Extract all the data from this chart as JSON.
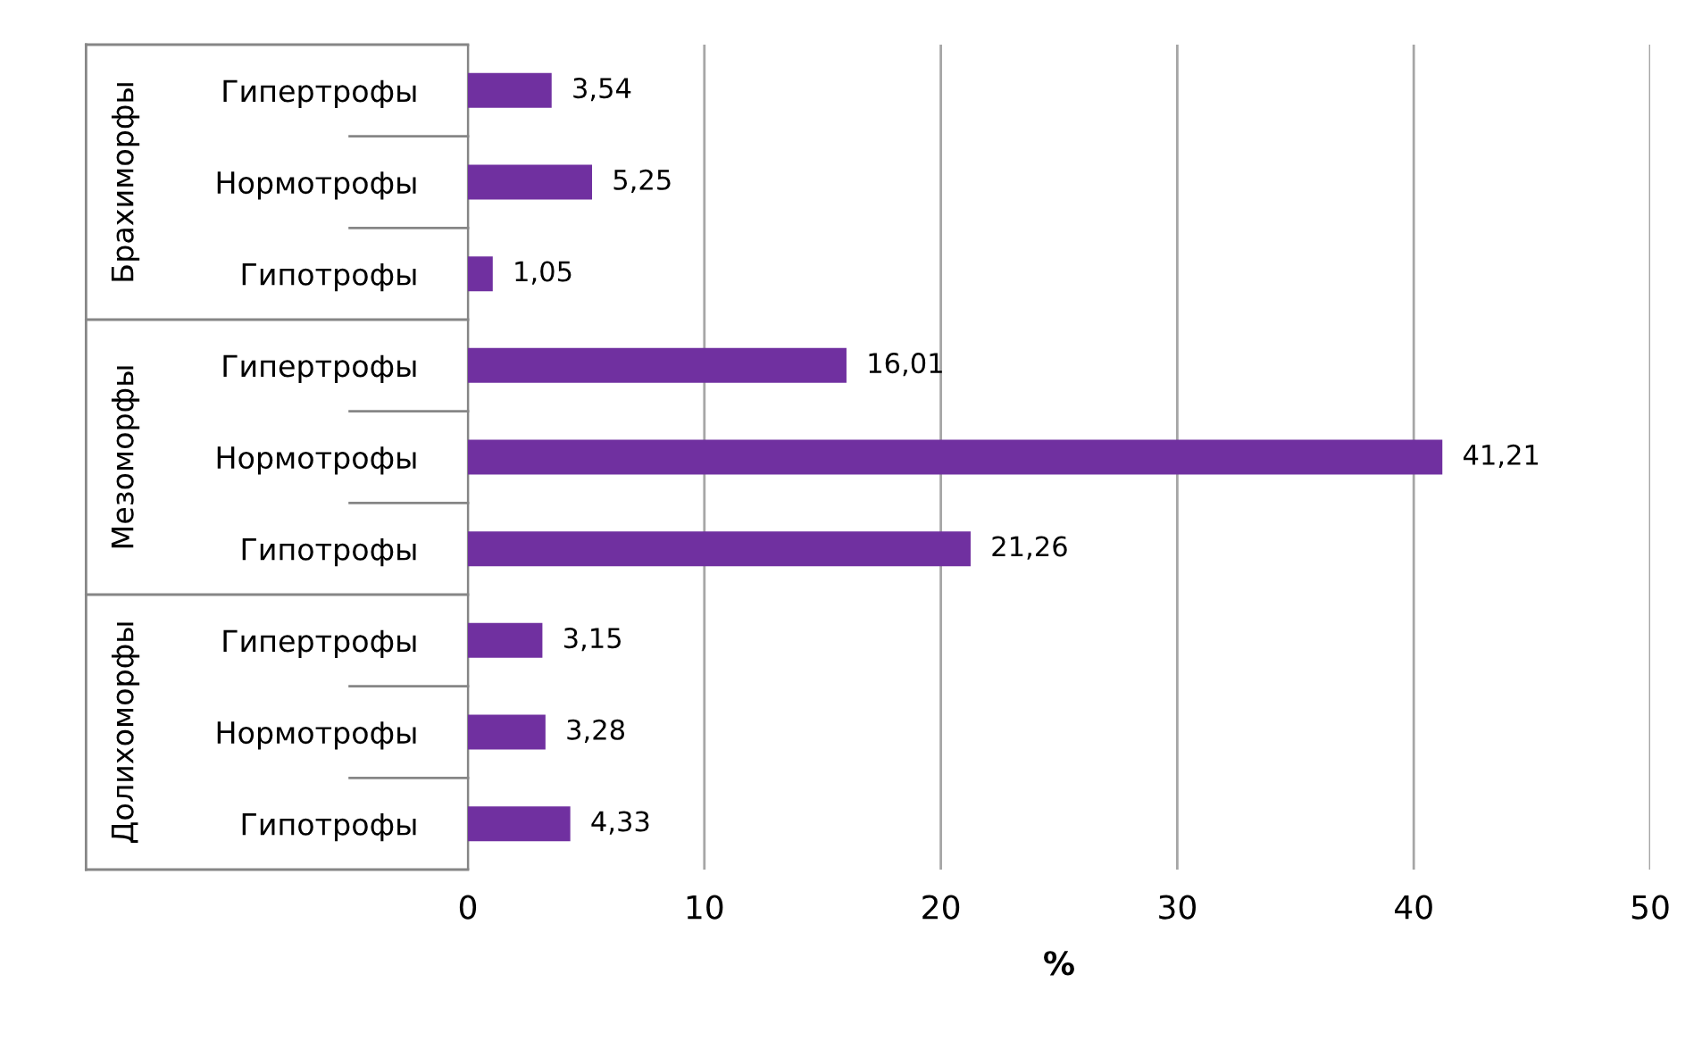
{
  "chart_data": {
    "type": "bar",
    "orientation": "horizontal",
    "xlabel": "%",
    "categories": [
      "Гипертрофы",
      "Нормотрофы",
      "Гипотрофы",
      "Гипертрофы",
      "Нормотрофы",
      "Гипотрофы",
      "Гипертрофы",
      "Нормотрофы",
      "Гипотрофы"
    ],
    "values": [
      3.54,
      5.25,
      1.05,
      16.01,
      41.21,
      21.26,
      3.15,
      3.28,
      4.33
    ],
    "value_labels": [
      "3,54",
      "5,25",
      "1,05",
      "16,01",
      "41,21",
      "21,26",
      "3,15",
      "3,28",
      "4,33"
    ],
    "color": "#7030a0",
    "annotations": [
      "Брахиморфы",
      "Мезоморфы",
      "Долихоморфы"
    ],
    "xlim": [
      0,
      50
    ],
    "xticks": [
      0,
      10,
      20,
      30,
      40,
      50
    ],
    "grid": "x",
    "legend": false
  }
}
